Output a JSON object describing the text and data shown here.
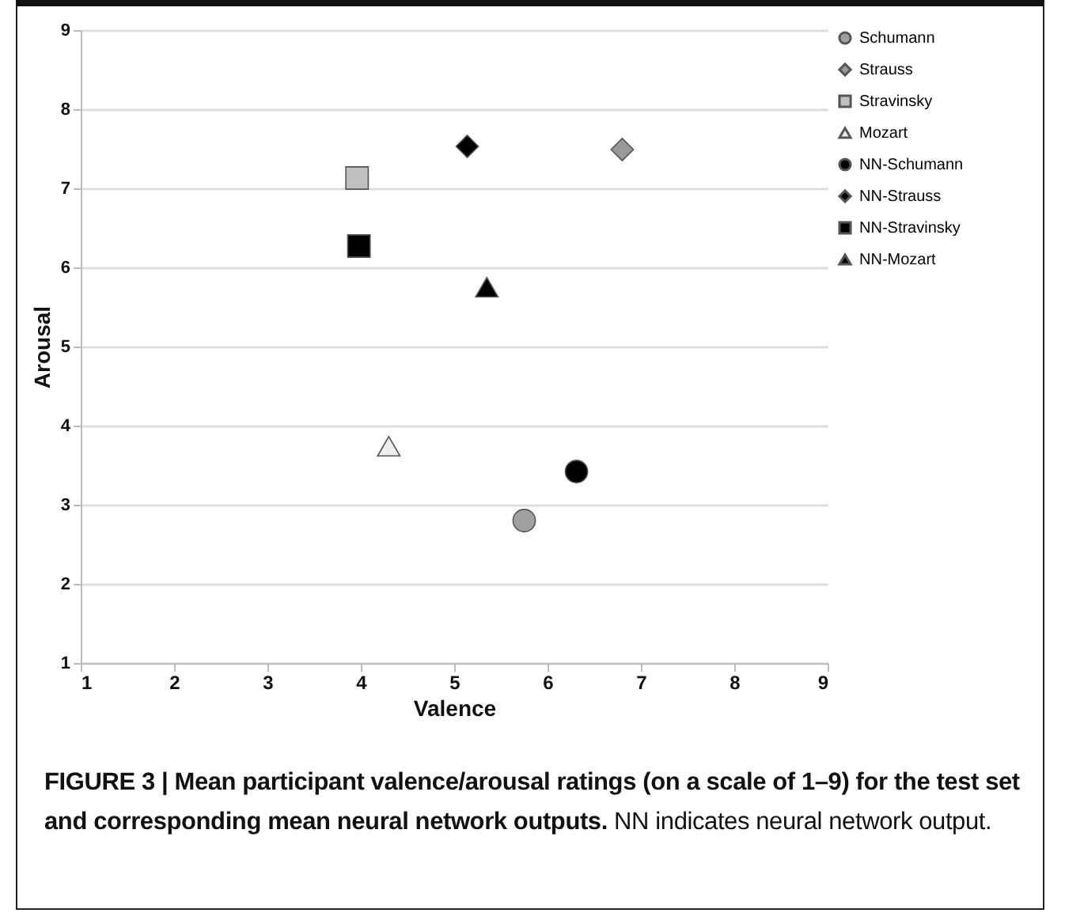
{
  "chart_data": {
    "type": "scatter",
    "xlabel": "Valence",
    "ylabel": "Arousal",
    "xlim": [
      1,
      9
    ],
    "xticks": [
      1,
      2,
      3,
      4,
      5,
      6,
      7,
      8,
      9
    ],
    "ylim": [
      1,
      9
    ],
    "yticks": [
      1,
      2,
      3,
      4,
      5,
      6,
      7,
      8,
      9
    ],
    "grid": "y",
    "legend": "right",
    "series": [
      {
        "name": "Schumann",
        "color": "#a0a0a0",
        "marker": "circle",
        "x": [
          5.75
        ],
        "values": [
          2.8
        ]
      },
      {
        "name": "Strauss",
        "color": "#999999",
        "marker": "diamond",
        "x": [
          6.8
        ],
        "values": [
          7.49
        ]
      },
      {
        "name": "Stravinsky",
        "color": "#c0c0c0",
        "marker": "square",
        "x": [
          3.96
        ],
        "values": [
          7.13
        ]
      },
      {
        "name": "Mozart",
        "color": "#eeeeee",
        "marker": "triangle",
        "x": [
          4.3
        ],
        "values": [
          3.74
        ]
      },
      {
        "name": "NN-Schumann",
        "color": "#000000",
        "marker": "circle",
        "x": [
          6.31
        ],
        "values": [
          3.42
        ]
      },
      {
        "name": "NN-Strauss",
        "color": "#000000",
        "marker": "diamond",
        "x": [
          5.14
        ],
        "values": [
          7.53
        ]
      },
      {
        "name": "NN-Stravinsky",
        "color": "#000000",
        "marker": "square",
        "x": [
          3.98
        ],
        "values": [
          6.27
        ]
      },
      {
        "name": "NN-Mozart",
        "color": "#000000",
        "marker": "triangle",
        "x": [
          5.35
        ],
        "values": [
          5.75
        ]
      }
    ],
    "annotations": [
      "FIGURE 3 | Mean participant valence/arousal ratings (on a scale of 1–9) for the test set and corresponding mean neural network outputs.",
      "NN indicates neural network output."
    ]
  }
}
